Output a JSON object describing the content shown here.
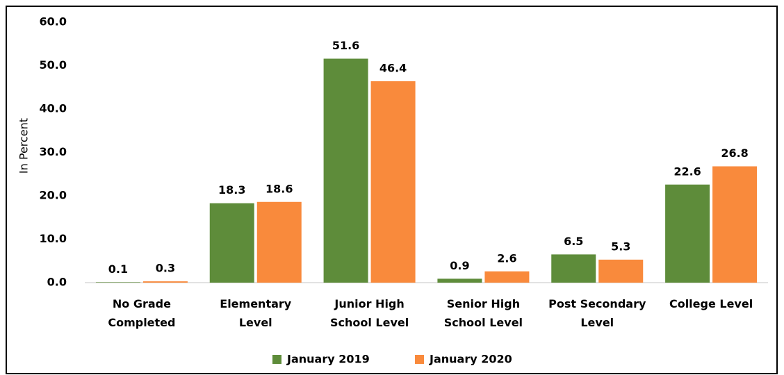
{
  "chart_data": {
    "type": "bar",
    "y_label": "In Percent",
    "categories": [
      "No Grade Completed",
      "Elementary Level",
      "Junior High School Level",
      "Senior High School Level",
      "Post Secondary Level",
      "College Level"
    ],
    "series": [
      {
        "name": "January 2019",
        "color": "#5e8c3a",
        "values": [
          0.1,
          18.3,
          51.6,
          0.9,
          6.5,
          22.6
        ]
      },
      {
        "name": "January 2020",
        "color": "#f98a3c",
        "values": [
          0.3,
          18.6,
          46.4,
          2.6,
          5.3,
          26.8
        ]
      }
    ],
    "ylim": [
      0,
      60
    ],
    "yticks": [
      {
        "value": 0,
        "label": "0.0"
      },
      {
        "value": 10,
        "label": "10.0"
      },
      {
        "value": 20,
        "label": "20.0"
      },
      {
        "value": 30,
        "label": "30.0"
      },
      {
        "value": 40,
        "label": "40.0"
      },
      {
        "value": 50,
        "label": "50.0"
      },
      {
        "value": 60,
        "label": "60.0"
      }
    ],
    "grid": false,
    "legend": "bottom"
  }
}
